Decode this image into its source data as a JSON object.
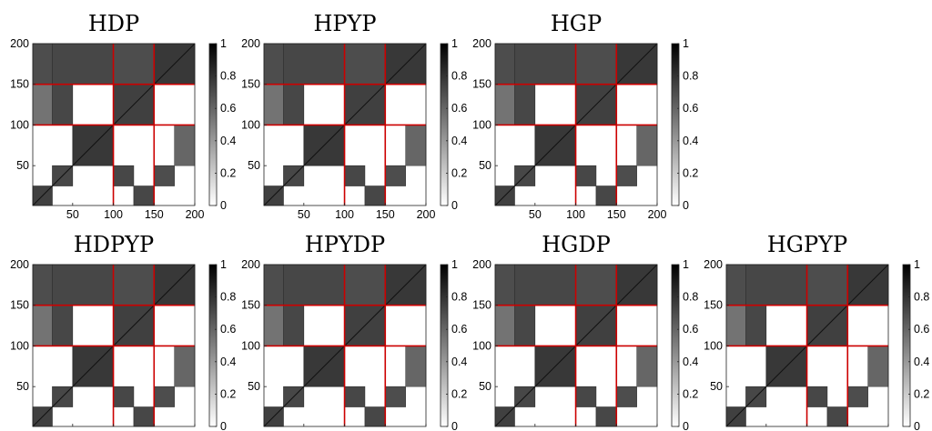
{
  "chart_data": {
    "type": "heatmap",
    "layout": {
      "rows": 2,
      "cols": 4
    },
    "grid": false,
    "axis": {
      "xlim": [
        1,
        200
      ],
      "ylim": [
        1,
        200
      ],
      "x_ticks": [
        50,
        100,
        150,
        200
      ],
      "y_ticks": [
        50,
        100,
        150,
        200
      ]
    },
    "colorbar": {
      "range": [
        0,
        1
      ],
      "ticks": [
        "0",
        "0.2",
        "0.4",
        "0.6",
        "0.8",
        "1"
      ],
      "colormap": "gray-reversed",
      "low_color": "#ffffff",
      "high_color": "#000000"
    },
    "separator_lines": {
      "positions": [
        100,
        150
      ],
      "color": "#cc0000"
    },
    "blocks": [
      {
        "x": [
          1,
          25
        ],
        "y": [
          1,
          25
        ],
        "value": 0.75
      },
      {
        "x": [
          25,
          50
        ],
        "y": [
          25,
          50
        ],
        "value": 0.72
      },
      {
        "x": [
          50,
          100
        ],
        "y": [
          50,
          100
        ],
        "value": 0.78
      },
      {
        "x": [
          100,
          125
        ],
        "y": [
          25,
          50
        ],
        "value": 0.72
      },
      {
        "x": [
          125,
          150
        ],
        "y": [
          1,
          25
        ],
        "value": 0.72
      },
      {
        "x": [
          150,
          175
        ],
        "y": [
          25,
          50
        ],
        "value": 0.7
      },
      {
        "x": [
          175,
          200
        ],
        "y": [
          50,
          100
        ],
        "value": 0.6
      },
      {
        "x": [
          1,
          25
        ],
        "y": [
          100,
          150
        ],
        "value": 0.55
      },
      {
        "x": [
          25,
          50
        ],
        "y": [
          100,
          150
        ],
        "value": 0.72
      },
      {
        "x": [
          100,
          150
        ],
        "y": [
          100,
          150
        ],
        "value": 0.75
      },
      {
        "x": [
          1,
          25
        ],
        "y": [
          150,
          200
        ],
        "value": 0.7
      },
      {
        "x": [
          25,
          100
        ],
        "y": [
          150,
          200
        ],
        "value": 0.72
      },
      {
        "x": [
          100,
          150
        ],
        "y": [
          150,
          200
        ],
        "value": 0.7
      },
      {
        "x": [
          150,
          200
        ],
        "y": [
          150,
          200
        ],
        "value": 0.78
      }
    ],
    "panels": [
      {
        "title": "HDP",
        "show_colorbar_zero": false
      },
      {
        "title": "HPYP",
        "show_colorbar_zero": false
      },
      {
        "title": "HGP",
        "show_colorbar_zero": false
      },
      {
        "title": "HDPYP",
        "show_colorbar_zero": true
      },
      {
        "title": "HPYDP",
        "show_colorbar_zero": true
      },
      {
        "title": "HGDP",
        "show_colorbar_zero": true
      },
      {
        "title": "HGPYP",
        "show_colorbar_zero": true
      }
    ]
  }
}
